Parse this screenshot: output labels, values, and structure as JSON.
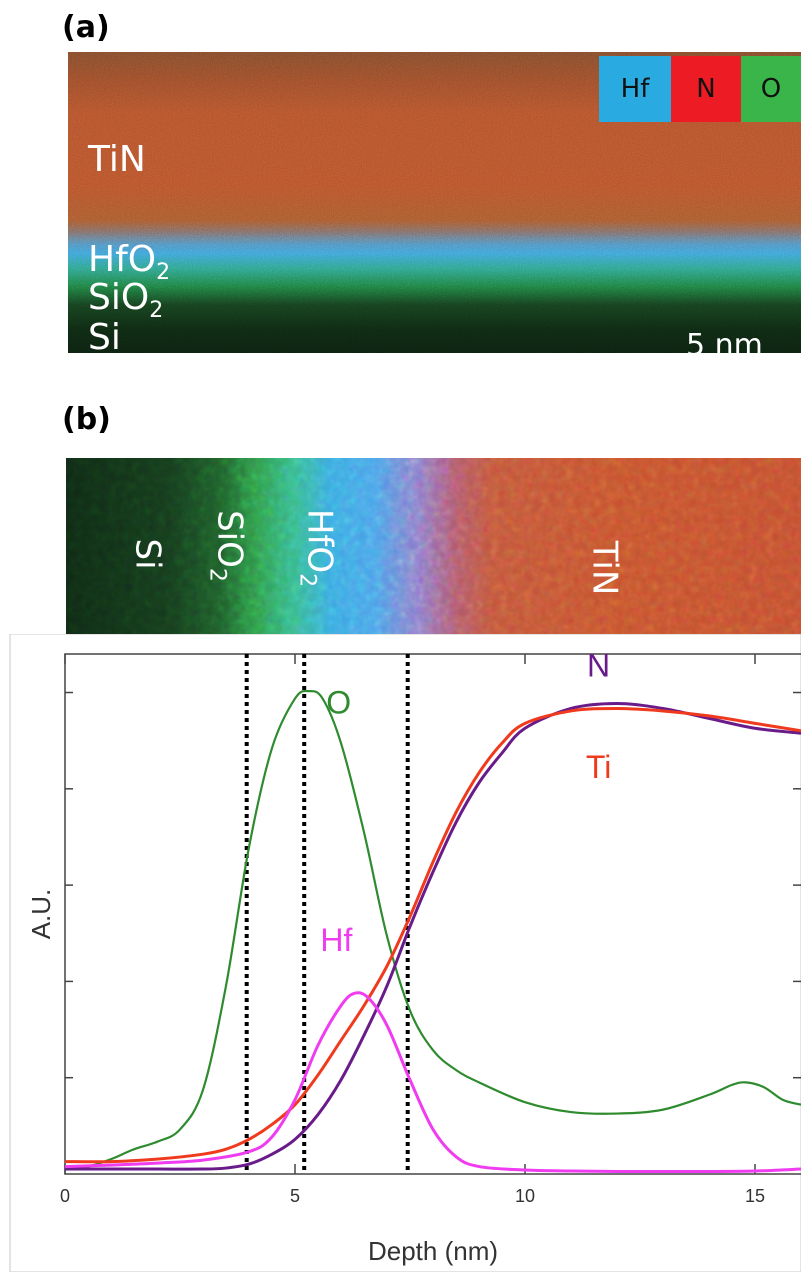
{
  "panel_a": {
    "label": "(a)",
    "layers": [
      {
        "name": "TiN",
        "sub": ""
      },
      {
        "name": "HfO",
        "sub": "2"
      },
      {
        "name": "SiO",
        "sub": "2"
      },
      {
        "name": "Si",
        "sub": ""
      }
    ],
    "legend": [
      {
        "label": "Hf",
        "color": "#29abe2"
      },
      {
        "label": "N",
        "color": "#ed1c24"
      },
      {
        "label": "O",
        "color": "#39b54a"
      }
    ],
    "scalebar": "5 nm"
  },
  "panel_b": {
    "label": "(b)",
    "layers": [
      {
        "name": "Si",
        "sub": ""
      },
      {
        "name": "SiO",
        "sub": "2"
      },
      {
        "name": "HfO",
        "sub": "2"
      },
      {
        "name": "TiN",
        "sub": ""
      }
    ]
  },
  "chart_data": {
    "type": "line",
    "title": "",
    "xlabel": "Depth (nm)",
    "ylabel": "A.U.",
    "xlim": [
      0,
      16
    ],
    "ylim": [
      0,
      1.05
    ],
    "xticks": [
      "0",
      "5",
      "10",
      "15"
    ],
    "grid": false,
    "boundaries": [
      3.95,
      5.2,
      7.45
    ],
    "series": [
      {
        "name": "O",
        "color": "#2e8b2e",
        "x": [
          0,
          0.5,
          1,
          1.5,
          2,
          2.5,
          3,
          3.5,
          4,
          4.5,
          5,
          5.3,
          5.6,
          6,
          6.5,
          7,
          7.5,
          8,
          8.5,
          9,
          10,
          11,
          12,
          13,
          14,
          14.5,
          14.8,
          15.2,
          15.6,
          16
        ],
        "y": [
          0.01,
          0.015,
          0.03,
          0.05,
          0.065,
          0.09,
          0.17,
          0.38,
          0.66,
          0.86,
          0.96,
          0.975,
          0.96,
          0.87,
          0.69,
          0.48,
          0.33,
          0.25,
          0.21,
          0.185,
          0.145,
          0.125,
          0.122,
          0.13,
          0.16,
          0.18,
          0.185,
          0.175,
          0.15,
          0.14
        ]
      },
      {
        "name": "N",
        "color": "#6a1b8a",
        "x": [
          0,
          1,
          2,
          3,
          3.5,
          4,
          4.5,
          5,
          5.5,
          6,
          6.5,
          7,
          7.5,
          8,
          8.5,
          9,
          9.5,
          10,
          11,
          12,
          13,
          14,
          15,
          16
        ],
        "y": [
          0.01,
          0.01,
          0.01,
          0.01,
          0.012,
          0.02,
          0.04,
          0.07,
          0.12,
          0.19,
          0.28,
          0.38,
          0.5,
          0.61,
          0.71,
          0.79,
          0.85,
          0.9,
          0.94,
          0.95,
          0.94,
          0.92,
          0.9,
          0.89
        ]
      },
      {
        "name": "Ti",
        "color": "#f03a1e",
        "x": [
          0,
          1,
          2,
          3,
          3.5,
          4,
          4.5,
          5,
          5.5,
          6,
          6.5,
          7,
          7.5,
          8,
          8.5,
          9,
          9.5,
          10,
          11,
          12,
          13,
          14,
          15,
          16
        ],
        "y": [
          0.025,
          0.025,
          0.03,
          0.04,
          0.05,
          0.07,
          0.1,
          0.14,
          0.2,
          0.27,
          0.34,
          0.42,
          0.52,
          0.63,
          0.73,
          0.81,
          0.87,
          0.91,
          0.935,
          0.94,
          0.935,
          0.925,
          0.91,
          0.895
        ]
      },
      {
        "name": "Hf",
        "color": "#f03cf0",
        "x": [
          0,
          1,
          2,
          3,
          4,
          4.5,
          5,
          5.5,
          6,
          6.3,
          6.6,
          7,
          7.5,
          8,
          8.5,
          9,
          10,
          11,
          12,
          13,
          14,
          15,
          16
        ],
        "y": [
          0.015,
          0.018,
          0.022,
          0.028,
          0.045,
          0.075,
          0.15,
          0.26,
          0.34,
          0.365,
          0.355,
          0.3,
          0.19,
          0.09,
          0.035,
          0.015,
          0.008,
          0.006,
          0.005,
          0.005,
          0.005,
          0.006,
          0.01
        ]
      }
    ]
  }
}
